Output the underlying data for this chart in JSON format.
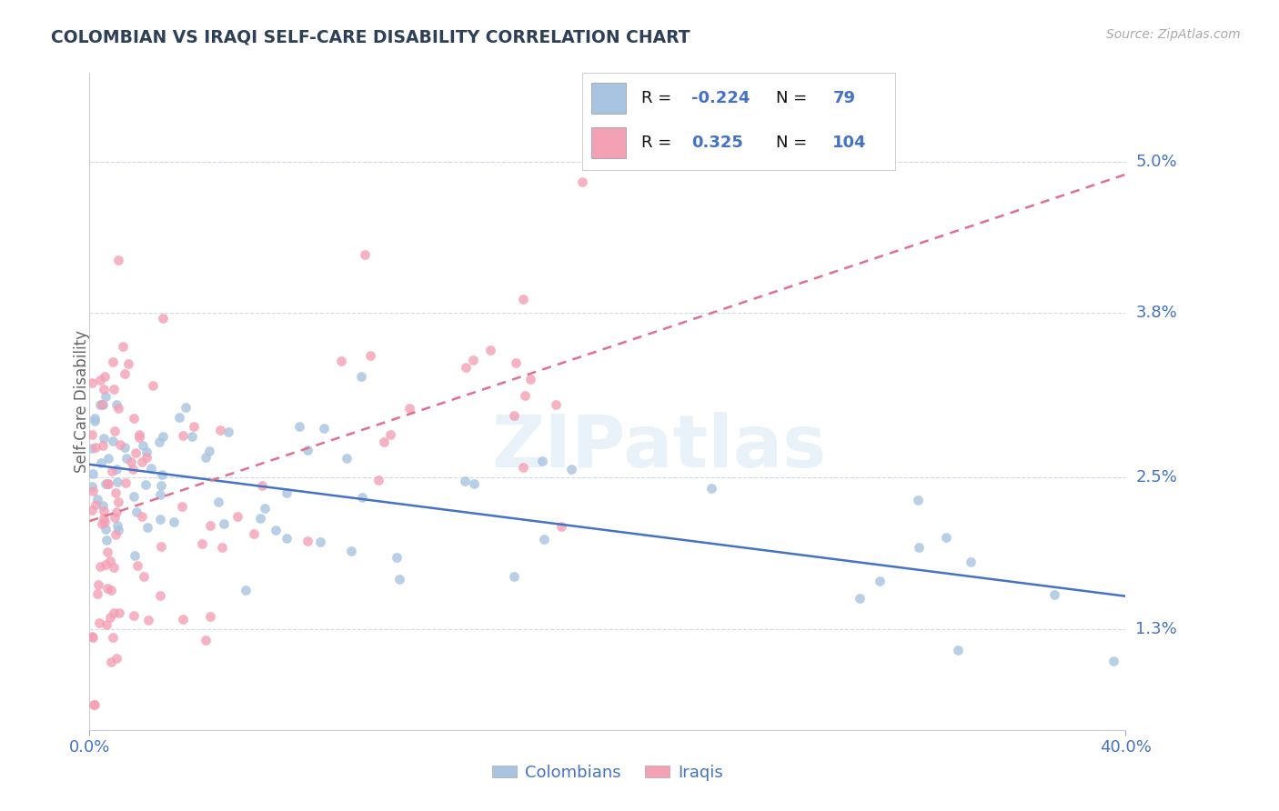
{
  "title": "COLOMBIAN VS IRAQI SELF-CARE DISABILITY CORRELATION CHART",
  "source": "Source: ZipAtlas.com",
  "ylabel": "Self-Care Disability",
  "ytick_labels": [
    "1.3%",
    "2.5%",
    "3.8%",
    "5.0%"
  ],
  "ytick_values": [
    0.013,
    0.025,
    0.038,
    0.05
  ],
  "xlim": [
    0.0,
    0.4
  ],
  "ylim": [
    0.005,
    0.057
  ],
  "colombian_color": "#a8c4e0",
  "iraqi_color": "#f4a0b5",
  "colombian_line_color": "#4472c4",
  "iraqi_line_color": "#e07090",
  "title_color": "#2e4057",
  "axis_label_color": "#4472c4",
  "legend_text_color": "#4472c4",
  "R_colombian": -0.224,
  "N_colombian": 79,
  "R_iraqi": 0.325,
  "N_iraqi": 104,
  "watermark_text": "ZIPatlas",
  "legend_label_colombians": "Colombians",
  "legend_label_iraqis": "Iraqis",
  "seed_colombian": 42,
  "seed_iraqi": 7
}
